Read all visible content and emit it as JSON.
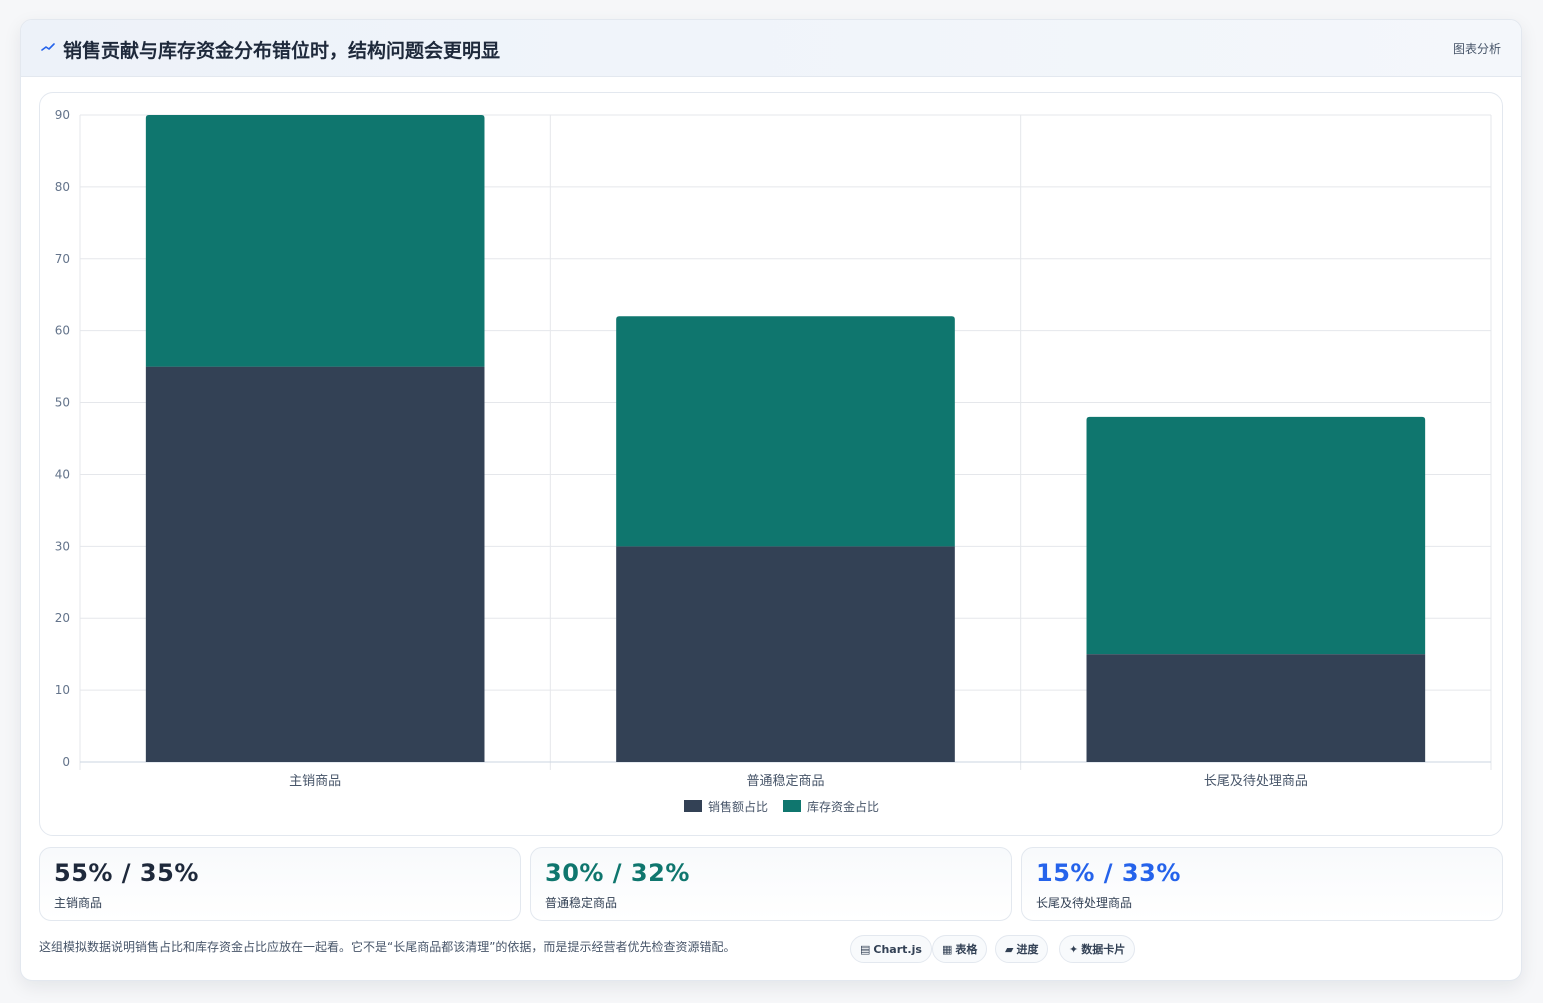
{
  "header": {
    "title": "销售贡献与库存资金分布错位时，结构问题会更明显",
    "tag": "图表分析"
  },
  "chart_data": {
    "type": "bar",
    "stacked": true,
    "categories": [
      "主销商品",
      "普通稳定商品",
      "长尾及待处理商品"
    ],
    "series": [
      {
        "name": "销售额占比",
        "values": [
          55,
          30,
          15
        ],
        "color": "#334155"
      },
      {
        "name": "库存资金占比",
        "values": [
          35,
          32,
          33
        ],
        "color": "#0f766e"
      }
    ],
    "ylim": [
      0,
      90
    ],
    "yticks": [
      0,
      10,
      20,
      30,
      40,
      50,
      60,
      70,
      80,
      90
    ],
    "grid": true,
    "legend_position": "bottom"
  },
  "stats": [
    {
      "value": "55% / 35%",
      "label": "主销商品",
      "color": "#1e293b"
    },
    {
      "value": "30% / 32%",
      "label": "普通稳定商品",
      "color": "#0f766e"
    },
    {
      "value": "15% / 33%",
      "label": "长尾及待处理商品",
      "color": "#2563eb"
    }
  ],
  "footnote": "这组模拟数据说明销售占比和库存资金占比应放在一起看。它不是“长尾商品都该清理”的依据，而是提示经营者优先检查资源错配。",
  "pills": [
    {
      "icon": "▤",
      "icon_name": "chart-icon",
      "label": "Chart.js"
    },
    {
      "icon": "▦",
      "icon_name": "table-icon",
      "label": "表格"
    },
    {
      "icon": "▰",
      "icon_name": "progress-icon",
      "label": "进度"
    },
    {
      "icon": "✦",
      "icon_name": "sparkle-icon",
      "label": "数据卡片"
    }
  ]
}
